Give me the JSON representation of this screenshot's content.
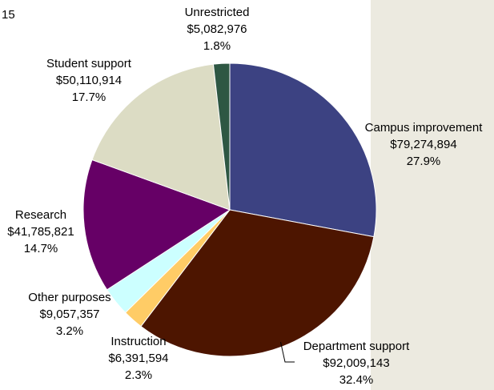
{
  "page": {
    "corner_label": "15",
    "panel_color": "#ECEAE0"
  },
  "chart_data": {
    "type": "pie",
    "start_angle_deg": 0,
    "direction": "clockwise",
    "slices": [
      {
        "name": "Campus improvement",
        "amount": "$79,274,894",
        "value": 79274894,
        "percent": "27.9%",
        "color": "#3C4282",
        "leader_line": false
      },
      {
        "name": "Department support",
        "amount": "$92,009,143",
        "value": 92009143,
        "percent": "32.4%",
        "color": "#4D1500",
        "leader_line": true
      },
      {
        "name": "Instruction",
        "amount": "$6,391,594",
        "value": 6391594,
        "percent": "2.3%",
        "color": "#FFCC66",
        "leader_line": false
      },
      {
        "name": "Other purposes",
        "amount": "$9,057,357",
        "value": 9057357,
        "percent": "3.2%",
        "color": "#CCFFFF",
        "leader_line": false
      },
      {
        "name": "Research",
        "amount": "$41,785,821",
        "value": 41785821,
        "percent": "14.7%",
        "color": "#660066",
        "leader_line": false
      },
      {
        "name": "Student support",
        "amount": "$50,110,914",
        "value": 50110914,
        "percent": "17.7%",
        "color": "#DCDCC4",
        "leader_line": false
      },
      {
        "name": "Unrestricted",
        "amount": "$5,082,976",
        "value": 5082976,
        "percent": "1.8%",
        "color": "#2E5743",
        "leader_line": false
      }
    ]
  }
}
